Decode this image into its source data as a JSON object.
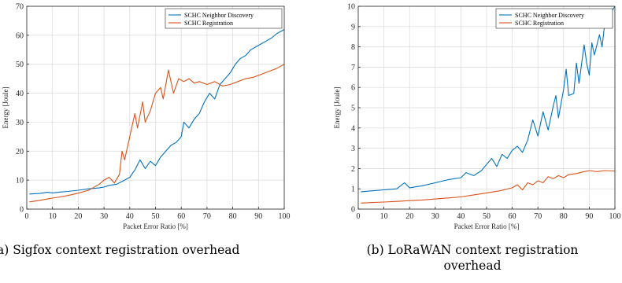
{
  "captions": {
    "a": "a) Sigfox context registration overhead",
    "b_line1": "(b) LoRaWAN context registration",
    "b_line2": "overhead"
  },
  "colors": {
    "neighbor_discovery": "#0072BD",
    "registration": "#D95319"
  },
  "chart_data": [
    {
      "type": "line",
      "title": "",
      "xlabel": "Packet Error Ratio [%]",
      "ylabel": "Energy [Joule]",
      "xlim": [
        0,
        100
      ],
      "ylim": [
        0,
        70
      ],
      "xticks": [
        0,
        10,
        20,
        30,
        40,
        50,
        60,
        70,
        80,
        90,
        100
      ],
      "yticks": [
        0,
        10,
        20,
        30,
        40,
        50,
        60,
        70
      ],
      "grid": true,
      "legend_position": "top-right",
      "series": [
        {
          "name": "SCHC Neighbor Discovery",
          "color": "#0072BD",
          "points": [
            [
              1,
              5.2
            ],
            [
              5,
              5.4
            ],
            [
              8,
              5.8
            ],
            [
              10,
              5.6
            ],
            [
              13,
              5.9
            ],
            [
              16,
              6.1
            ],
            [
              20,
              6.5
            ],
            [
              24,
              7.0
            ],
            [
              28,
              7.3
            ],
            [
              30,
              7.6
            ],
            [
              32,
              8.2
            ],
            [
              35,
              8.6
            ],
            [
              38,
              10.0
            ],
            [
              40,
              11.0
            ],
            [
              42,
              13.5
            ],
            [
              44,
              17.0
            ],
            [
              46,
              14.0
            ],
            [
              48,
              16.5
            ],
            [
              50,
              15.0
            ],
            [
              52,
              18.0
            ],
            [
              54,
              20.0
            ],
            [
              56,
              22.0
            ],
            [
              58,
              23.0
            ],
            [
              60,
              25.0
            ],
            [
              61,
              30.0
            ],
            [
              63,
              28.0
            ],
            [
              65,
              31.0
            ],
            [
              67,
              33.0
            ],
            [
              69,
              37.0
            ],
            [
              71,
              40.0
            ],
            [
              73,
              38.0
            ],
            [
              75,
              43.0
            ],
            [
              77,
              45.0
            ],
            [
              79,
              47.0
            ],
            [
              81,
              50.0
            ],
            [
              83,
              52.0
            ],
            [
              85,
              53.0
            ],
            [
              87,
              55.0
            ],
            [
              89,
              56.0
            ],
            [
              91,
              57.0
            ],
            [
              93,
              58.0
            ],
            [
              95,
              59.0
            ],
            [
              97,
              60.5
            ],
            [
              100,
              62.0
            ]
          ]
        },
        {
          "name": "SCHC Registration",
          "color": "#D95319",
          "points": [
            [
              1,
              2.5
            ],
            [
              5,
              3.0
            ],
            [
              8,
              3.5
            ],
            [
              10,
              3.8
            ],
            [
              13,
              4.2
            ],
            [
              16,
              4.7
            ],
            [
              20,
              5.5
            ],
            [
              24,
              6.5
            ],
            [
              28,
              8.5
            ],
            [
              30,
              10.0
            ],
            [
              32,
              11.0
            ],
            [
              34,
              9.0
            ],
            [
              36,
              12.0
            ],
            [
              37,
              20.0
            ],
            [
              38,
              17.0
            ],
            [
              40,
              25.0
            ],
            [
              42,
              33.0
            ],
            [
              43,
              28.0
            ],
            [
              45,
              37.0
            ],
            [
              46,
              30.0
            ],
            [
              48,
              34.0
            ],
            [
              50,
              40.0
            ],
            [
              52,
              42.0
            ],
            [
              53,
              38.0
            ],
            [
              55,
              48.0
            ],
            [
              57,
              40.0
            ],
            [
              59,
              45.0
            ],
            [
              61,
              44.0
            ],
            [
              63,
              45.0
            ],
            [
              65,
              43.5
            ],
            [
              67,
              44.0
            ],
            [
              70,
              43.0
            ],
            [
              73,
              44.0
            ],
            [
              76,
              42.5
            ],
            [
              79,
              43.0
            ],
            [
              82,
              44.0
            ],
            [
              85,
              45.0
            ],
            [
              88,
              45.5
            ],
            [
              91,
              46.5
            ],
            [
              94,
              47.5
            ],
            [
              97,
              48.5
            ],
            [
              100,
              50.0
            ]
          ]
        }
      ]
    },
    {
      "type": "line",
      "title": "",
      "xlabel": "Packet Error Ratio [%]",
      "ylabel": "Energy [Joule]",
      "xlim": [
        0,
        100
      ],
      "ylim": [
        0,
        10
      ],
      "xticks": [
        0,
        10,
        20,
        30,
        40,
        50,
        60,
        70,
        80,
        90,
        100
      ],
      "yticks": [
        0,
        1,
        2,
        3,
        4,
        5,
        6,
        7,
        8,
        9,
        10
      ],
      "grid": true,
      "legend_position": "top-right",
      "series": [
        {
          "name": "SCHC Neighbor Discovery",
          "color": "#0072BD",
          "points": [
            [
              1,
              0.85
            ],
            [
              5,
              0.9
            ],
            [
              10,
              0.95
            ],
            [
              15,
              1.0
            ],
            [
              18,
              1.3
            ],
            [
              20,
              1.05
            ],
            [
              25,
              1.15
            ],
            [
              30,
              1.3
            ],
            [
              35,
              1.45
            ],
            [
              40,
              1.55
            ],
            [
              42,
              1.8
            ],
            [
              45,
              1.65
            ],
            [
              48,
              1.9
            ],
            [
              50,
              2.2
            ],
            [
              52,
              2.5
            ],
            [
              54,
              2.1
            ],
            [
              56,
              2.7
            ],
            [
              58,
              2.5
            ],
            [
              60,
              2.9
            ],
            [
              62,
              3.1
            ],
            [
              64,
              2.8
            ],
            [
              66,
              3.4
            ],
            [
              68,
              4.4
            ],
            [
              70,
              3.6
            ],
            [
              72,
              4.8
            ],
            [
              74,
              3.9
            ],
            [
              76,
              5.1
            ],
            [
              77,
              5.6
            ],
            [
              78,
              4.5
            ],
            [
              80,
              5.9
            ],
            [
              81,
              6.9
            ],
            [
              82,
              5.6
            ],
            [
              84,
              5.7
            ],
            [
              85,
              7.2
            ],
            [
              86,
              6.2
            ],
            [
              88,
              8.1
            ],
            [
              89,
              7.2
            ],
            [
              90,
              6.6
            ],
            [
              91,
              8.2
            ],
            [
              92,
              7.6
            ],
            [
              94,
              8.6
            ],
            [
              95,
              8.0
            ],
            [
              96,
              9.1
            ],
            [
              98,
              9.6
            ],
            [
              100,
              10.0
            ]
          ]
        },
        {
          "name": "SCHC Registration",
          "color": "#D95319",
          "points": [
            [
              1,
              0.3
            ],
            [
              5,
              0.32
            ],
            [
              10,
              0.35
            ],
            [
              15,
              0.38
            ],
            [
              20,
              0.42
            ],
            [
              25,
              0.45
            ],
            [
              30,
              0.5
            ],
            [
              35,
              0.55
            ],
            [
              40,
              0.6
            ],
            [
              45,
              0.7
            ],
            [
              50,
              0.8
            ],
            [
              55,
              0.9
            ],
            [
              60,
              1.05
            ],
            [
              62,
              1.2
            ],
            [
              64,
              0.95
            ],
            [
              66,
              1.3
            ],
            [
              68,
              1.2
            ],
            [
              70,
              1.4
            ],
            [
              72,
              1.3
            ],
            [
              74,
              1.6
            ],
            [
              76,
              1.5
            ],
            [
              78,
              1.65
            ],
            [
              80,
              1.55
            ],
            [
              82,
              1.7
            ],
            [
              85,
              1.75
            ],
            [
              88,
              1.85
            ],
            [
              90,
              1.9
            ],
            [
              93,
              1.85
            ],
            [
              96,
              1.9
            ],
            [
              100,
              1.88
            ]
          ]
        }
      ]
    }
  ]
}
